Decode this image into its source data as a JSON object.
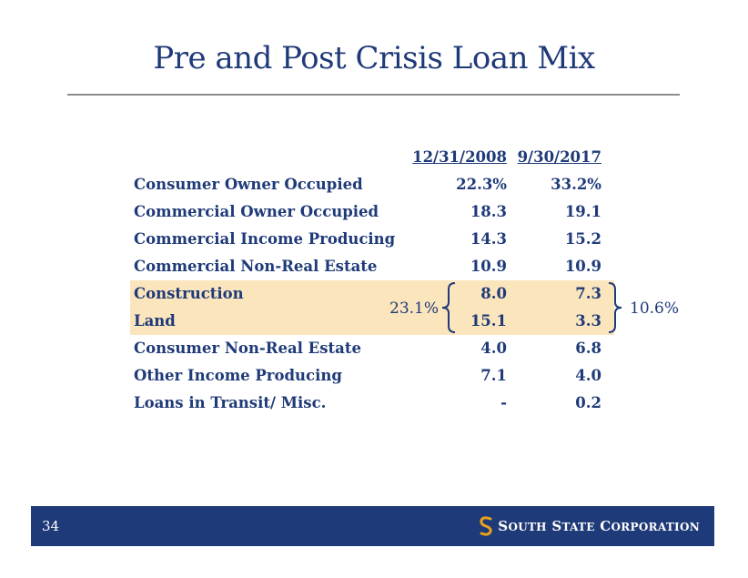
{
  "title": "Pre and Post Crisis Loan Mix",
  "columns": [
    "12/31/2008",
    "9/30/2017"
  ],
  "rows": [
    {
      "label": "Consumer Owner Occupied",
      "v2008": "22.3%",
      "v2017": "33.2%"
    },
    {
      "label": "Commercial Owner Occupied",
      "v2008": "18.3",
      "v2017": "19.1"
    },
    {
      "label": "Commercial Income Producing",
      "v2008": "14.3",
      "v2017": "15.2"
    },
    {
      "label": "Commercial Non-Real Estate",
      "v2008": "10.9",
      "v2017": "10.9"
    },
    {
      "label": "Construction",
      "v2008": "8.0",
      "v2017": "7.3"
    },
    {
      "label": "Land",
      "v2008": "15.1",
      "v2017": "3.3"
    },
    {
      "label": "Consumer Non-Real Estate",
      "v2008": "4.0",
      "v2017": "6.8"
    },
    {
      "label": "Other Income Producing",
      "v2008": "7.1",
      "v2017": "4.0"
    },
    {
      "label": "Loans in Transit/ Misc.",
      "v2008": "-",
      "v2017": "0.2"
    }
  ],
  "brace_left_total": "23.1%",
  "brace_right_total": "10.6%",
  "footer": {
    "page_number": "34",
    "logo_name": "SOUTH STATE CORPORATION",
    "logo_first": "S",
    "logo_first_rest": "OUTH",
    "logo_second": "S",
    "logo_second_rest": "TATE",
    "logo_third": "C",
    "logo_third_rest": "ORPORATION"
  },
  "colors": {
    "navy": "#1f3a78",
    "highlight": "#fbe5bd",
    "logo_gold": "#e8a21c"
  }
}
